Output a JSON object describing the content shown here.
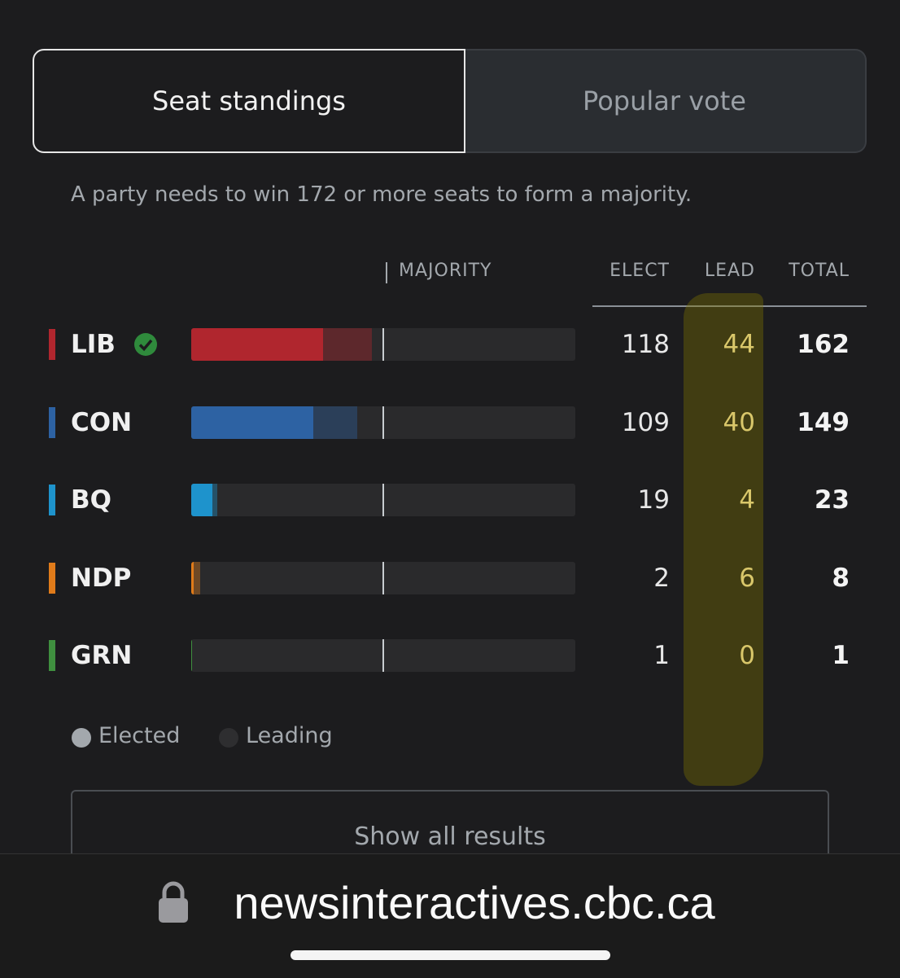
{
  "tabs": [
    {
      "label": "Seat standings",
      "selected": true
    },
    {
      "label": "Popular vote",
      "selected": false
    }
  ],
  "note": {
    "before": "A party needs to win ",
    "majority": 172,
    "after": " or more seats to form a majority."
  },
  "columns": {
    "majority": "MAJORITY",
    "elect": "ELECT",
    "lead": "LEAD",
    "total": "TOTAL"
  },
  "parties": [
    {
      "name": "LIB",
      "color": "#b0262e",
      "winner": true,
      "elect": 118,
      "lead": 44,
      "total": 162
    },
    {
      "name": "CON",
      "color": "#2d62a3",
      "winner": false,
      "elect": 109,
      "lead": 40,
      "total": 149
    },
    {
      "name": "BQ",
      "color": "#1e93cc",
      "winner": false,
      "elect": 19,
      "lead": 4,
      "total": 23
    },
    {
      "name": "NDP",
      "color": "#e07b1a",
      "winner": false,
      "elect": 2,
      "lead": 6,
      "total": 8
    },
    {
      "name": "GRN",
      "color": "#3f8f3f",
      "winner": false,
      "elect": 1,
      "lead": 0,
      "total": 1
    }
  ],
  "legend": {
    "elected": "Elected",
    "leading": "Leading"
  },
  "button": "Show all results",
  "url": "newsinteractives.cbc.ca"
}
